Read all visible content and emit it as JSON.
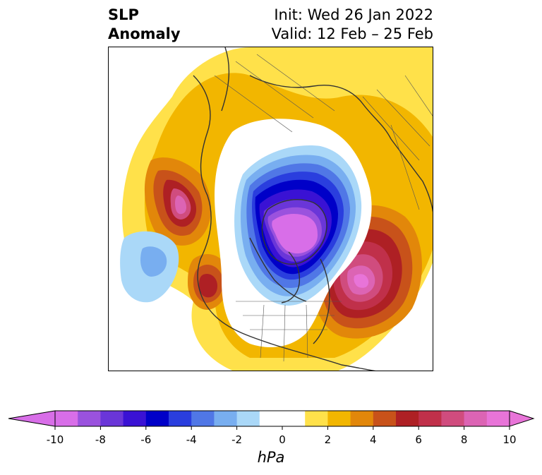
{
  "title": {
    "variable": "SLP",
    "kind": "Anomaly",
    "init": "Init: Wed 26 Jan 2022",
    "valid": "Valid: 12 Feb – 25 Feb"
  },
  "map": {
    "projection": "north-polar-stereographic",
    "features": [
      "coastlines",
      "country-borders",
      "state-province-borders"
    ]
  },
  "colorbar": {
    "units": "hPa",
    "extend": "both",
    "ticks": [
      "-10",
      "-8",
      "-6",
      "-4",
      "-2",
      "0",
      "2",
      "4",
      "6",
      "8",
      "10"
    ],
    "min": -10,
    "max": 10,
    "step": 1,
    "colors": [
      "#d86ee8",
      "#9a52de",
      "#6a36d8",
      "#3a12d4",
      "#0000c8",
      "#2a3ede",
      "#5077e6",
      "#78aef0",
      "#aad8f8",
      "#ffffff",
      "#ffffff",
      "#ffe14a",
      "#f2b600",
      "#e2870a",
      "#c8521a",
      "#ae2024",
      "#c0304a",
      "#d04c7e",
      "#dc64b4",
      "#e874d8"
    ]
  },
  "anomaly_centers": [
    {
      "label": "negative-arctic-low",
      "min_hPa": -10
    },
    {
      "label": "positive-north-atlantic-high",
      "max_hPa": 10
    },
    {
      "label": "positive-north-pacific-high",
      "max_hPa": 9
    },
    {
      "label": "negative-central-pacific",
      "min_hPa": -3
    }
  ]
}
